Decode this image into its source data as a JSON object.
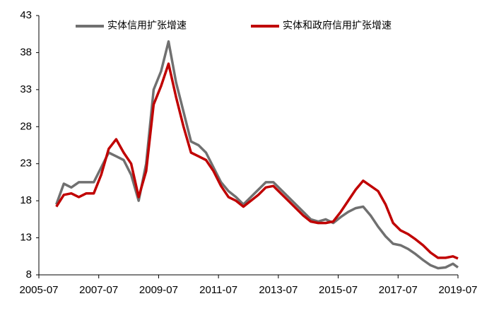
{
  "chart_data": {
    "type": "line",
    "x": [
      "2006-02",
      "2006-05",
      "2006-08",
      "2006-11",
      "2007-02",
      "2007-05",
      "2007-08",
      "2007-11",
      "2008-02",
      "2008-05",
      "2008-08",
      "2008-11",
      "2009-02",
      "2009-05",
      "2009-08",
      "2009-11",
      "2010-02",
      "2010-05",
      "2010-08",
      "2010-11",
      "2011-02",
      "2011-05",
      "2011-08",
      "2011-11",
      "2012-02",
      "2012-05",
      "2012-08",
      "2012-11",
      "2013-02",
      "2013-05",
      "2013-08",
      "2013-11",
      "2014-02",
      "2014-05",
      "2014-08",
      "2014-11",
      "2015-02",
      "2015-05",
      "2015-08",
      "2015-11",
      "2016-02",
      "2016-05",
      "2016-08",
      "2016-11",
      "2017-02",
      "2017-05",
      "2017-08",
      "2017-11",
      "2018-02",
      "2018-05",
      "2018-08",
      "2018-11",
      "2019-02",
      "2019-05",
      "2019-07"
    ],
    "series": [
      {
        "name": "实体信用扩张增速",
        "color": "#707070",
        "values": [
          17.5,
          20.3,
          19.8,
          20.5,
          20.5,
          20.5,
          22.5,
          24.5,
          24.0,
          23.5,
          21.5,
          18.0,
          23.0,
          33.0,
          35.5,
          39.5,
          34.0,
          30.0,
          26.0,
          25.5,
          24.5,
          22.5,
          20.5,
          19.3,
          18.5,
          17.5,
          18.5,
          19.5,
          20.5,
          20.5,
          19.5,
          18.5,
          17.5,
          16.5,
          15.5,
          15.2,
          15.5,
          15.0,
          15.8,
          16.5,
          17.0,
          17.2,
          16.0,
          14.5,
          13.2,
          12.2,
          12.0,
          11.5,
          10.8,
          10.0,
          9.3,
          8.9,
          9.0,
          9.5,
          9.0
        ]
      },
      {
        "name": "实体和政府信用扩张增速",
        "color": "#c00000",
        "values": [
          17.2,
          18.8,
          19.0,
          18.5,
          19.0,
          19.0,
          21.5,
          25.0,
          26.3,
          24.5,
          23.0,
          18.5,
          22.0,
          31.0,
          33.5,
          36.5,
          32.0,
          28.0,
          24.5,
          24.0,
          23.5,
          22.0,
          20.0,
          18.5,
          18.0,
          17.2,
          18.0,
          18.8,
          19.8,
          20.0,
          19.0,
          18.0,
          17.0,
          16.0,
          15.2,
          15.0,
          15.0,
          15.2,
          16.5,
          18.0,
          19.5,
          20.7,
          20.0,
          19.3,
          17.5,
          15.0,
          14.0,
          13.5,
          12.8,
          12.0,
          11.0,
          10.3,
          10.3,
          10.5,
          10.2
        ]
      }
    ],
    "xlim": [
      "2005-07",
      "2019-07"
    ],
    "xticks": [
      "2005-07",
      "2007-07",
      "2009-07",
      "2011-07",
      "2013-07",
      "2015-07",
      "2017-07",
      "2019-07"
    ],
    "ylim": [
      8,
      43
    ],
    "yticks": [
      8,
      13,
      18,
      23,
      28,
      33,
      38,
      43
    ],
    "grid": false,
    "legend": "top"
  }
}
